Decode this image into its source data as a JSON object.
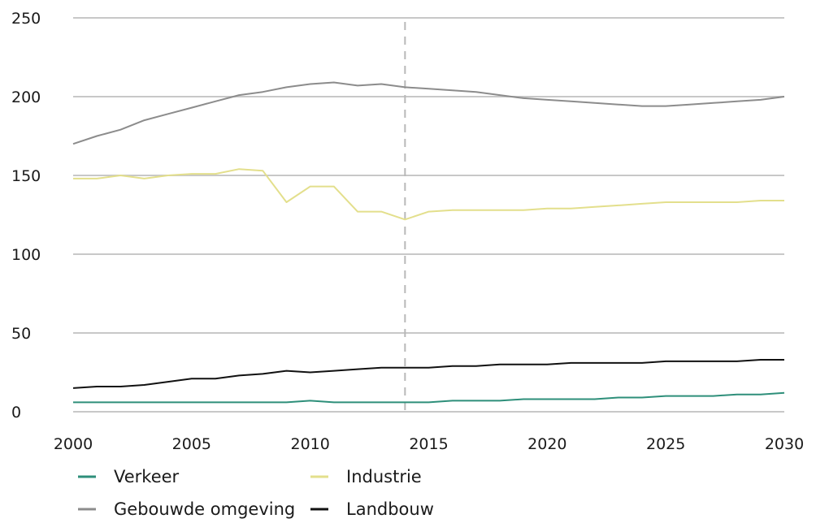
{
  "chart_data": {
    "type": "line",
    "title": "",
    "xlabel": "",
    "ylabel": "",
    "xlim": [
      2000,
      2030
    ],
    "ylim": [
      0,
      250
    ],
    "x_ticks": [
      2000,
      2005,
      2010,
      2015,
      2020,
      2025,
      2030
    ],
    "y_ticks": [
      0,
      50,
      100,
      150,
      200,
      250
    ],
    "grid": "horizontal",
    "reference_line_x": 2014,
    "legend_position": "bottom",
    "series": [
      {
        "name": "Gebouwde omgeving",
        "color": "#8c8c8c",
        "x": [
          2000,
          2001,
          2002,
          2003,
          2004,
          2005,
          2006,
          2007,
          2008,
          2009,
          2010,
          2011,
          2012,
          2013,
          2014,
          2015,
          2016,
          2017,
          2018,
          2019,
          2020,
          2021,
          2022,
          2023,
          2024,
          2025,
          2026,
          2027,
          2028,
          2029,
          2030
        ],
        "values": [
          170,
          175,
          179,
          185,
          189,
          193,
          197,
          201,
          203,
          206,
          208,
          209,
          207,
          208,
          206,
          205,
          204,
          203,
          201,
          199,
          198,
          197,
          196,
          195,
          194,
          194,
          195,
          196,
          197,
          198,
          200
        ]
      },
      {
        "name": "Industrie",
        "color": "#e3df8c",
        "x": [
          2000,
          2001,
          2002,
          2003,
          2004,
          2005,
          2006,
          2007,
          2008,
          2009,
          2010,
          2011,
          2012,
          2013,
          2014,
          2015,
          2016,
          2017,
          2018,
          2019,
          2020,
          2021,
          2022,
          2023,
          2024,
          2025,
          2026,
          2027,
          2028,
          2029,
          2030
        ],
        "values": [
          148,
          148,
          150,
          148,
          150,
          151,
          151,
          154,
          153,
          133,
          143,
          143,
          127,
          127,
          122,
          127,
          128,
          128,
          128,
          128,
          129,
          129,
          130,
          131,
          132,
          133,
          133,
          133,
          133,
          134,
          134
        ]
      },
      {
        "name": "Landbouw",
        "color": "#111111",
        "x": [
          2000,
          2001,
          2002,
          2003,
          2004,
          2005,
          2006,
          2007,
          2008,
          2009,
          2010,
          2011,
          2012,
          2013,
          2014,
          2015,
          2016,
          2017,
          2018,
          2019,
          2020,
          2021,
          2022,
          2023,
          2024,
          2025,
          2026,
          2027,
          2028,
          2029,
          2030
        ],
        "values": [
          15,
          16,
          16,
          17,
          19,
          21,
          21,
          23,
          24,
          26,
          25,
          26,
          27,
          28,
          28,
          28,
          29,
          29,
          30,
          30,
          30,
          31,
          31,
          31,
          31,
          32,
          32,
          32,
          32,
          33,
          33
        ]
      },
      {
        "name": "Verkeer",
        "color": "#2e8f7a",
        "x": [
          2000,
          2001,
          2002,
          2003,
          2004,
          2005,
          2006,
          2007,
          2008,
          2009,
          2010,
          2011,
          2012,
          2013,
          2014,
          2015,
          2016,
          2017,
          2018,
          2019,
          2020,
          2021,
          2022,
          2023,
          2024,
          2025,
          2026,
          2027,
          2028,
          2029,
          2030
        ],
        "values": [
          6,
          6,
          6,
          6,
          6,
          6,
          6,
          6,
          6,
          6,
          7,
          6,
          6,
          6,
          6,
          6,
          7,
          7,
          7,
          8,
          8,
          8,
          8,
          9,
          9,
          10,
          10,
          10,
          11,
          11,
          12
        ]
      }
    ],
    "legend": [
      {
        "label": "Verkeer",
        "color": "#2e8f7a"
      },
      {
        "label": "Industrie",
        "color": "#e3df8c"
      },
      {
        "label": "Gebouwde omgeving",
        "color": "#8c8c8c"
      },
      {
        "label": "Landbouw",
        "color": "#111111"
      }
    ]
  }
}
